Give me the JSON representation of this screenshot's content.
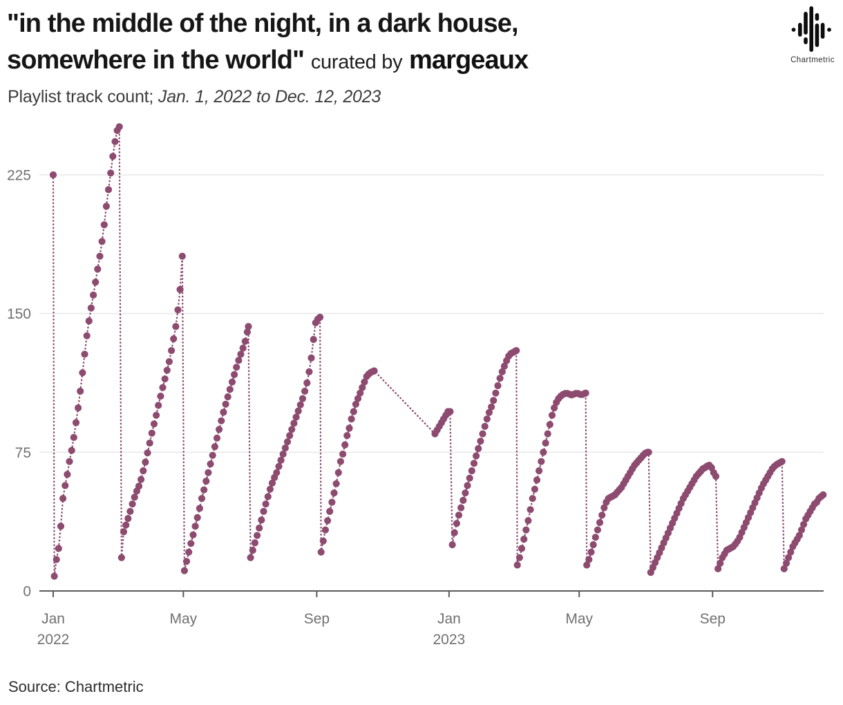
{
  "header": {
    "title_line1": "\"in the middle of the night, in a dark house,",
    "title_line2": "somewhere in the world\"",
    "curated_prefix": "curated by",
    "curator": "margeaux",
    "subtitle_prefix": "Playlist track count;",
    "subtitle_range": "Jan. 1, 2022 to Dec. 12, 2023"
  },
  "branding": {
    "logo_icon": "chartmetric-waveform-icon",
    "name": "Chartmetric"
  },
  "footer": {
    "source": "Source: Chartmetric"
  },
  "chart_data": {
    "type": "scatter",
    "title": "\"in the middle of the night, in a dark house, somewhere in the world\" curated by margeaux",
    "ylabel": "Playlist track count",
    "x_start_date": "2022-01-01",
    "x_end_date": "2023-12-12",
    "x_unit": "days since Jan 1, 2022",
    "ylim": [
      0,
      260
    ],
    "grid": "horizontal",
    "legend": "none",
    "point_color": "#8d4b70",
    "grid_color": "#e7e7e7",
    "axis_color": "#5a5a5a",
    "tick_label_color": "#707070",
    "yticks": [
      {
        "value": 0,
        "label": "0"
      },
      {
        "value": 75,
        "label": "75"
      },
      {
        "value": 150,
        "label": "150"
      },
      {
        "value": 225,
        "label": "225"
      }
    ],
    "xticks": [
      {
        "day": 0,
        "label": "Jan",
        "sublabel": "2022"
      },
      {
        "day": 120,
        "label": "May"
      },
      {
        "day": 243,
        "label": "Sep"
      },
      {
        "day": 365,
        "label": "Jan",
        "sublabel": "2023"
      },
      {
        "day": 485,
        "label": "May"
      },
      {
        "day": 608,
        "label": "Sep"
      }
    ],
    "series_name": "Playlist track count",
    "line_style": "dotted",
    "segments": [
      {
        "step": 1,
        "anchors": [
          [
            0,
            225
          ]
        ]
      },
      {
        "step": 2,
        "anchors": [
          [
            1,
            8
          ],
          [
            3,
            17
          ],
          [
            5,
            23
          ],
          [
            7,
            35
          ],
          [
            9,
            50
          ],
          [
            11,
            57
          ],
          [
            13,
            63
          ],
          [
            15,
            70
          ],
          [
            17,
            76
          ],
          [
            19,
            83
          ],
          [
            21,
            91
          ],
          [
            23,
            99
          ],
          [
            25,
            108
          ],
          [
            27,
            118
          ],
          [
            29,
            128
          ],
          [
            31,
            138
          ],
          [
            33,
            146
          ],
          [
            35,
            153
          ],
          [
            37,
            160
          ],
          [
            39,
            167
          ],
          [
            41,
            174
          ],
          [
            43,
            181
          ],
          [
            45,
            189
          ],
          [
            47,
            198
          ],
          [
            49,
            208
          ],
          [
            51,
            217
          ],
          [
            53,
            226
          ],
          [
            55,
            235
          ],
          [
            57,
            243
          ],
          [
            59,
            249
          ],
          [
            61,
            251
          ]
        ]
      },
      {
        "step": 2,
        "anchors": [
          [
            63,
            18
          ],
          [
            64,
            24
          ],
          [
            65,
            32
          ],
          [
            70,
            41
          ],
          [
            74,
            49
          ],
          [
            77,
            54
          ],
          [
            80,
            58
          ],
          [
            83,
            65
          ],
          [
            86,
            72
          ],
          [
            89,
            80
          ],
          [
            92,
            88
          ],
          [
            95,
            95
          ],
          [
            98,
            103
          ],
          [
            101,
            110
          ],
          [
            104,
            117
          ],
          [
            107,
            124
          ],
          [
            110,
            133
          ],
          [
            113,
            143
          ],
          [
            115,
            152
          ],
          [
            117,
            163
          ],
          [
            118,
            172
          ],
          [
            119,
            181
          ]
        ]
      },
      {
        "step": 2,
        "anchors": [
          [
            121,
            11
          ],
          [
            123,
            16
          ],
          [
            125,
            21
          ],
          [
            128,
            28
          ],
          [
            131,
            35
          ],
          [
            134,
            42
          ],
          [
            137,
            50
          ],
          [
            140,
            57
          ],
          [
            143,
            64
          ],
          [
            146,
            71
          ],
          [
            149,
            78
          ],
          [
            152,
            85
          ],
          [
            155,
            92
          ],
          [
            158,
            99
          ],
          [
            161,
            105
          ],
          [
            164,
            111
          ],
          [
            167,
            117
          ],
          [
            170,
            123
          ],
          [
            173,
            128
          ],
          [
            176,
            133
          ],
          [
            178,
            137
          ],
          [
            180,
            143
          ]
        ]
      },
      {
        "step": 2,
        "anchors": [
          [
            182,
            18
          ],
          [
            185,
            24
          ],
          [
            188,
            30
          ],
          [
            191,
            36
          ],
          [
            194,
            43
          ],
          [
            197,
            49
          ],
          [
            200,
            55
          ],
          [
            203,
            60
          ],
          [
            206,
            64
          ],
          [
            209,
            69
          ],
          [
            212,
            74
          ],
          [
            215,
            79
          ],
          [
            218,
            84
          ],
          [
            221,
            89
          ],
          [
            224,
            94
          ],
          [
            227,
            99
          ],
          [
            230,
            104
          ],
          [
            233,
            110
          ],
          [
            235,
            115
          ],
          [
            237,
            122
          ],
          [
            239,
            130
          ],
          [
            240,
            136
          ],
          [
            241,
            141
          ],
          [
            242,
            145
          ],
          [
            244,
            147
          ],
          [
            246,
            148
          ]
        ]
      },
      {
        "step": 2,
        "anchors": [
          [
            247,
            21
          ],
          [
            249,
            27
          ],
          [
            251,
            33
          ],
          [
            253,
            38
          ],
          [
            255,
            43
          ],
          [
            257,
            48
          ],
          [
            259,
            53
          ],
          [
            261,
            58
          ],
          [
            263,
            64
          ],
          [
            265,
            70
          ],
          [
            267,
            74
          ],
          [
            269,
            79
          ],
          [
            271,
            84
          ],
          [
            273,
            88
          ],
          [
            275,
            93
          ],
          [
            277,
            97
          ],
          [
            279,
            101
          ],
          [
            281,
            104
          ],
          [
            283,
            107
          ],
          [
            285,
            110
          ],
          [
            287,
            113
          ],
          [
            289,
            116
          ],
          [
            292,
            118
          ],
          [
            296,
            119
          ]
        ]
      },
      {
        "step": 2,
        "anchors": [
          [
            352,
            85
          ],
          [
            354,
            87
          ],
          [
            356,
            89
          ],
          [
            358,
            91
          ],
          [
            360,
            93
          ],
          [
            362,
            95
          ],
          [
            364,
            97
          ],
          [
            366,
            97
          ]
        ]
      },
      {
        "step": 2,
        "anchors": [
          [
            368,
            25
          ],
          [
            369,
            29
          ],
          [
            371,
            34
          ],
          [
            373,
            39
          ],
          [
            375,
            43
          ],
          [
            377,
            47
          ],
          [
            379,
            51
          ],
          [
            381,
            55
          ],
          [
            383,
            59
          ],
          [
            385,
            63
          ],
          [
            387,
            67
          ],
          [
            389,
            71
          ],
          [
            391,
            75
          ],
          [
            393,
            79
          ],
          [
            395,
            83
          ],
          [
            397,
            87
          ],
          [
            399,
            91
          ],
          [
            401,
            95
          ],
          [
            403,
            98
          ],
          [
            405,
            101
          ],
          [
            407,
            105
          ],
          [
            409,
            109
          ],
          [
            411,
            113
          ],
          [
            413,
            117
          ],
          [
            415,
            120
          ],
          [
            417,
            123
          ],
          [
            419,
            126
          ],
          [
            421,
            128
          ],
          [
            424,
            129
          ],
          [
            427,
            130
          ]
        ]
      },
      {
        "step": 2,
        "anchors": [
          [
            428,
            14
          ],
          [
            430,
            18
          ],
          [
            432,
            23
          ],
          [
            434,
            28
          ],
          [
            436,
            33
          ],
          [
            438,
            38
          ],
          [
            440,
            44
          ],
          [
            442,
            50
          ],
          [
            444,
            55
          ],
          [
            446,
            60
          ],
          [
            448,
            65
          ],
          [
            450,
            70
          ],
          [
            452,
            75
          ],
          [
            454,
            80
          ],
          [
            456,
            85
          ],
          [
            458,
            90
          ],
          [
            460,
            95
          ],
          [
            462,
            99
          ],
          [
            464,
            102
          ],
          [
            466,
            104
          ],
          [
            469,
            106
          ],
          [
            473,
            107
          ],
          [
            478,
            106
          ],
          [
            483,
            107
          ],
          [
            487,
            106
          ],
          [
            491,
            107
          ]
        ]
      },
      {
        "step": 2,
        "anchors": [
          [
            492,
            14
          ],
          [
            494,
            17
          ],
          [
            496,
            21
          ],
          [
            498,
            25
          ],
          [
            500,
            29
          ],
          [
            502,
            33
          ],
          [
            504,
            37
          ],
          [
            506,
            41
          ],
          [
            508,
            45
          ],
          [
            510,
            48
          ],
          [
            512,
            50
          ],
          [
            515,
            51
          ],
          [
            518,
            52
          ],
          [
            521,
            54
          ],
          [
            524,
            56
          ],
          [
            527,
            59
          ],
          [
            530,
            62
          ],
          [
            533,
            65
          ],
          [
            536,
            68
          ],
          [
            539,
            70
          ],
          [
            542,
            72
          ],
          [
            545,
            74
          ],
          [
            547,
            75
          ],
          [
            549,
            75
          ]
        ]
      },
      {
        "step": 2,
        "anchors": [
          [
            551,
            10
          ],
          [
            554,
            14
          ],
          [
            557,
            18
          ],
          [
            560,
            22
          ],
          [
            563,
            26
          ],
          [
            566,
            30
          ],
          [
            569,
            34
          ],
          [
            572,
            38
          ],
          [
            575,
            42
          ],
          [
            578,
            46
          ],
          [
            581,
            50
          ],
          [
            584,
            53
          ],
          [
            587,
            56
          ],
          [
            590,
            59
          ],
          [
            593,
            62
          ],
          [
            596,
            64
          ],
          [
            599,
            66
          ],
          [
            602,
            67
          ],
          [
            604,
            68
          ],
          [
            606,
            68
          ],
          [
            609,
            64
          ],
          [
            611,
            62
          ]
        ]
      },
      {
        "step": 2,
        "anchors": [
          [
            613,
            12
          ],
          [
            615,
            15
          ],
          [
            617,
            18
          ],
          [
            619,
            20
          ],
          [
            621,
            22
          ],
          [
            624,
            23
          ],
          [
            627,
            24
          ],
          [
            630,
            26
          ],
          [
            633,
            29
          ],
          [
            636,
            33
          ],
          [
            639,
            37
          ],
          [
            642,
            41
          ],
          [
            645,
            45
          ],
          [
            648,
            49
          ],
          [
            651,
            53
          ],
          [
            654,
            57
          ],
          [
            657,
            60
          ],
          [
            660,
            63
          ],
          [
            663,
            66
          ],
          [
            666,
            68
          ],
          [
            669,
            69
          ],
          [
            672,
            70
          ]
        ]
      },
      {
        "step": 2,
        "anchors": [
          [
            674,
            12
          ],
          [
            676,
            15
          ],
          [
            678,
            18
          ],
          [
            680,
            21
          ],
          [
            682,
            24
          ],
          [
            684,
            26
          ],
          [
            686,
            28
          ],
          [
            688,
            30
          ],
          [
            690,
            33
          ],
          [
            692,
            36
          ],
          [
            694,
            39
          ],
          [
            696,
            41
          ],
          [
            698,
            43
          ],
          [
            700,
            45
          ],
          [
            702,
            47
          ],
          [
            704,
            48
          ],
          [
            706,
            50
          ],
          [
            708,
            51
          ],
          [
            710,
            52
          ]
        ]
      }
    ]
  }
}
